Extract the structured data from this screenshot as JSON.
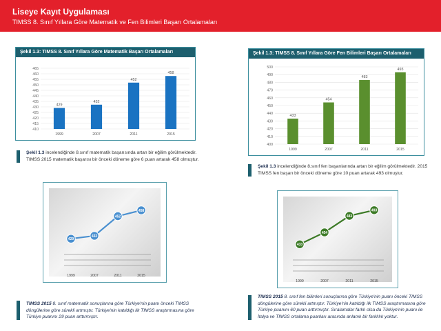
{
  "header": {
    "title": "Liseye Kayıt Uygulaması",
    "subtitle": "TIMSS 8. Sınıf Yıllara Göre Matematik ve Fen Bilimleri Başarı Ortalamaları"
  },
  "colors": {
    "header_bg": "#e3202b",
    "math_bar": "#1a73c2",
    "sci_bar": "#5a8f2e",
    "title_bg": "#1d5f6e"
  },
  "chart_data": [
    {
      "type": "bar",
      "title": "Şekil 1.3: TIMSS 8. Sınıf Yıllara Göre Matematik Başarı Ortalamaları",
      "categories": [
        "1999",
        "2007",
        "2011",
        "2015"
      ],
      "values": [
        429,
        432,
        452,
        458
      ],
      "data_labels": [
        "429",
        "432",
        "452",
        "458"
      ],
      "yticks": [
        "465",
        "460",
        "455",
        "450",
        "445",
        "440",
        "435",
        "430",
        "425",
        "420",
        "415",
        "410"
      ],
      "ylim": [
        410,
        465
      ],
      "grid": true
    },
    {
      "type": "bar",
      "title": "Şekil 1.3: TIMSS 8. Sınıf Yıllara Göre Fen Bilimleri Başarı Ortalamaları",
      "categories": [
        "1999",
        "2007",
        "2011",
        "2015"
      ],
      "values": [
        433,
        454,
        483,
        493
      ],
      "data_labels": [
        "433",
        "454",
        "483",
        "493"
      ],
      "yticks": [
        "500",
        "490",
        "480",
        "470",
        "460",
        "450",
        "440",
        "430",
        "420",
        "410",
        "400"
      ],
      "ylim": [
        400,
        500
      ],
      "grid": true
    },
    {
      "type": "line",
      "categories": [
        "1999",
        "2007",
        "2011",
        "2015"
      ],
      "values": [
        429,
        432,
        452,
        458
      ],
      "data_labels": [
        "429",
        "432",
        "452",
        "458"
      ],
      "ylim": [
        420,
        465
      ]
    },
    {
      "type": "line",
      "categories": [
        "1999",
        "2007",
        "2011",
        "2015"
      ],
      "values": [
        433,
        454,
        483,
        493
      ],
      "data_labels": [
        "433",
        "454",
        "483",
        "493"
      ],
      "ylim": [
        420,
        500
      ]
    }
  ],
  "captions": {
    "math_bold": "Şekil 1.3",
    "math_text": " incelendiğinde 8.sınıf matematik başarısında artan bir eğilim görülmektedir. TIMSS 2015 matematik başarısı bir önceki döneme göre 6 puan artarak 458 olmuştur.",
    "sci_bold": "Şekil 1.3",
    "sci_text": " incelendiğinde 8.sınıf fen başarılarında artan bir eğilim görülmektedir. 2015 TIMSS fen başarı bir önceki döneme göre 10 puan artarak 493 olmuştur.",
    "math_line_bold": "TIMSS 2015",
    "math_line_text": " 8. sınıf matematik sonuçlarına göre Türkiye'nin puanı önceki TIMSS döngülerine göre sürekli artmıştır. Türkiye'nin katıldığı ilk TIMSS araştırmasına göre Türkiye puanını 29 puan arttırmıştır.",
    "sci_line_bold": "TIMSS 2015",
    "sci_line_text": " 8. sınıf fen bilimleri sonuçlarına göre Türkiye'nin puanı önceki TIMSS döngülerine göre sürekli artmıştır. Türkiye'nin katıldığı ilk TIMSS araştırmasına göre Türkiye puanını 60 puan arttırmıştır. Sıralamalar farklı olsa da Türkiye'nin puanı ile İtalya ve TIMSS ortalama puanları arasında anlamlı bir farklılık yoktur."
  }
}
